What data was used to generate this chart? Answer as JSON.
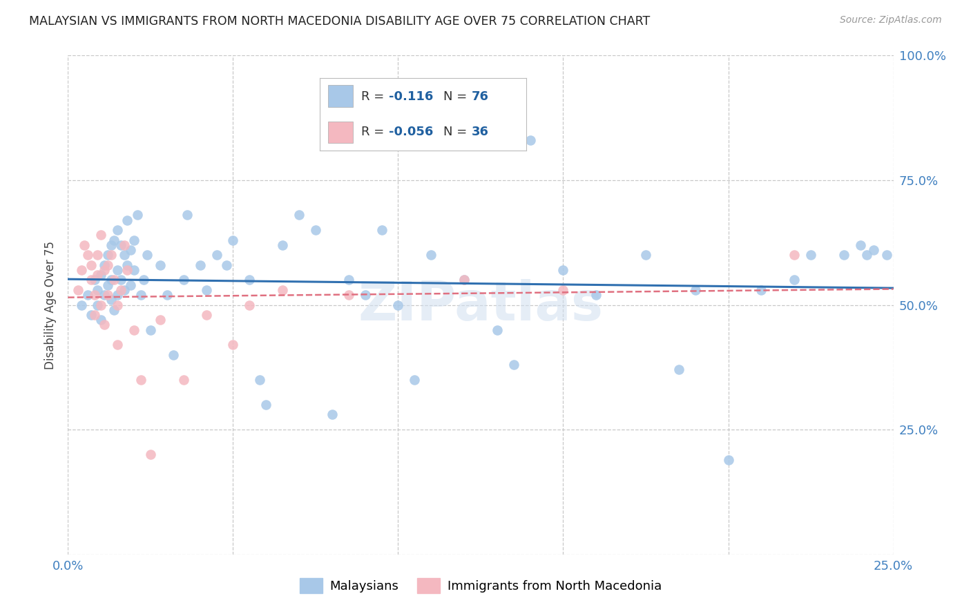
{
  "title": "MALAYSIAN VS IMMIGRANTS FROM NORTH MACEDONIA DISABILITY AGE OVER 75 CORRELATION CHART",
  "source": "Source: ZipAtlas.com",
  "ylabel": "Disability Age Over 75",
  "xlabel": "",
  "xlim": [
    0.0,
    0.25
  ],
  "ylim": [
    0.0,
    1.0
  ],
  "xticks": [
    0.0,
    0.05,
    0.1,
    0.15,
    0.2,
    0.25
  ],
  "yticks": [
    0.0,
    0.25,
    0.5,
    0.75,
    1.0
  ],
  "blue_color": "#a8c8e8",
  "blue_line_color": "#3070b0",
  "pink_color": "#f4b8c0",
  "pink_line_color": "#e07080",
  "legend_text_color": "#2060a0",
  "legend_label_color": "#333333",
  "watermark": "ZIPatlas",
  "bg_color": "#ffffff",
  "grid_color": "#c8c8c8",
  "right_axis_color": "#4080c0",
  "blue_x": [
    0.004,
    0.006,
    0.007,
    0.008,
    0.009,
    0.009,
    0.01,
    0.01,
    0.011,
    0.011,
    0.012,
    0.012,
    0.013,
    0.013,
    0.013,
    0.014,
    0.014,
    0.015,
    0.015,
    0.015,
    0.016,
    0.016,
    0.017,
    0.017,
    0.018,
    0.018,
    0.019,
    0.019,
    0.02,
    0.02,
    0.021,
    0.022,
    0.023,
    0.024,
    0.025,
    0.028,
    0.03,
    0.032,
    0.035,
    0.036,
    0.04,
    0.042,
    0.045,
    0.048,
    0.05,
    0.055,
    0.058,
    0.06,
    0.065,
    0.07,
    0.075,
    0.08,
    0.085,
    0.09,
    0.095,
    0.1,
    0.105,
    0.11,
    0.12,
    0.13,
    0.135,
    0.14,
    0.15,
    0.16,
    0.175,
    0.185,
    0.19,
    0.2,
    0.21,
    0.22,
    0.225,
    0.235,
    0.24,
    0.242,
    0.244,
    0.248
  ],
  "blue_y": [
    0.5,
    0.52,
    0.48,
    0.55,
    0.53,
    0.5,
    0.47,
    0.56,
    0.52,
    0.58,
    0.54,
    0.6,
    0.51,
    0.62,
    0.55,
    0.49,
    0.63,
    0.57,
    0.65,
    0.52,
    0.62,
    0.55,
    0.6,
    0.53,
    0.58,
    0.67,
    0.61,
    0.54,
    0.63,
    0.57,
    0.68,
    0.52,
    0.55,
    0.6,
    0.45,
    0.58,
    0.52,
    0.4,
    0.55,
    0.68,
    0.58,
    0.53,
    0.6,
    0.58,
    0.63,
    0.55,
    0.35,
    0.3,
    0.62,
    0.68,
    0.65,
    0.28,
    0.55,
    0.52,
    0.65,
    0.5,
    0.35,
    0.6,
    0.55,
    0.45,
    0.38,
    0.83,
    0.57,
    0.52,
    0.6,
    0.37,
    0.53,
    0.19,
    0.53,
    0.55,
    0.6,
    0.6,
    0.62,
    0.6,
    0.61,
    0.6
  ],
  "pink_x": [
    0.003,
    0.004,
    0.005,
    0.006,
    0.007,
    0.007,
    0.008,
    0.008,
    0.009,
    0.009,
    0.01,
    0.01,
    0.011,
    0.011,
    0.012,
    0.012,
    0.013,
    0.014,
    0.015,
    0.015,
    0.016,
    0.017,
    0.018,
    0.02,
    0.022,
    0.025,
    0.028,
    0.035,
    0.042,
    0.05,
    0.055,
    0.065,
    0.085,
    0.12,
    0.15,
    0.22
  ],
  "pink_y": [
    0.53,
    0.57,
    0.62,
    0.6,
    0.58,
    0.55,
    0.48,
    0.52,
    0.6,
    0.56,
    0.5,
    0.64,
    0.46,
    0.57,
    0.52,
    0.58,
    0.6,
    0.55,
    0.42,
    0.5,
    0.53,
    0.62,
    0.57,
    0.45,
    0.35,
    0.2,
    0.47,
    0.35,
    0.48,
    0.42,
    0.5,
    0.53,
    0.52,
    0.55,
    0.53,
    0.6
  ]
}
